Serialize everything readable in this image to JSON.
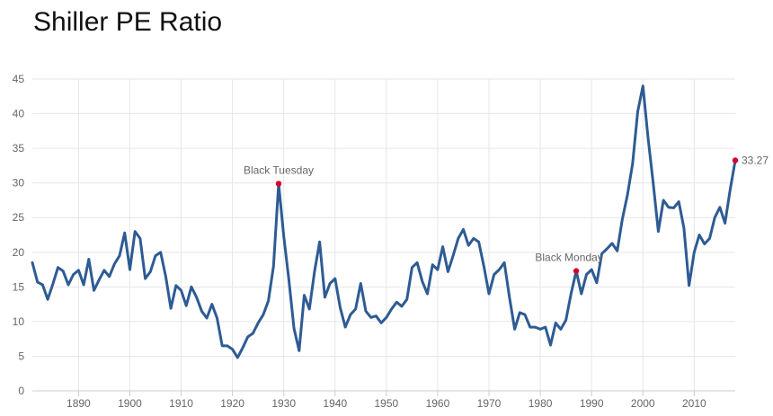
{
  "page": {
    "title": "Shiller PE Ratio"
  },
  "chart_data": {
    "type": "line",
    "title": "Shiller PE Ratio",
    "xlabel": "",
    "ylabel": "",
    "xlim": [
      1881,
      2018
    ],
    "ylim": [
      0,
      45
    ],
    "y_ticks": [
      0,
      5,
      10,
      15,
      20,
      25,
      30,
      35,
      40,
      45
    ],
    "x_ticks": [
      1890,
      1900,
      1910,
      1920,
      1930,
      1940,
      1950,
      1960,
      1970,
      1980,
      1990,
      2000,
      2010
    ],
    "grid": true,
    "legend": "none",
    "colors": {
      "line": "#2e5b94",
      "marker": "#d6002a",
      "grid": "#e6e6e6",
      "text": "#666666"
    },
    "series": [
      {
        "values": [
          [
            1881,
            18.5
          ],
          [
            1882,
            15.7
          ],
          [
            1883,
            15.3
          ],
          [
            1884,
            13.2
          ],
          [
            1885,
            15.4
          ],
          [
            1886,
            17.8
          ],
          [
            1887,
            17.3
          ],
          [
            1888,
            15.3
          ],
          [
            1889,
            16.8
          ],
          [
            1890,
            17.4
          ],
          [
            1891,
            15.3
          ],
          [
            1892,
            19.0
          ],
          [
            1893,
            14.5
          ],
          [
            1894,
            16.0
          ],
          [
            1895,
            17.4
          ],
          [
            1896,
            16.5
          ],
          [
            1897,
            18.3
          ],
          [
            1898,
            19.5
          ],
          [
            1899,
            22.8
          ],
          [
            1900,
            17.5
          ],
          [
            1901,
            23.0
          ],
          [
            1902,
            22.0
          ],
          [
            1903,
            16.2
          ],
          [
            1904,
            17.2
          ],
          [
            1905,
            19.5
          ],
          [
            1906,
            20.0
          ],
          [
            1907,
            16.5
          ],
          [
            1908,
            11.9
          ],
          [
            1909,
            15.2
          ],
          [
            1910,
            14.5
          ],
          [
            1911,
            12.3
          ],
          [
            1912,
            15.0
          ],
          [
            1913,
            13.5
          ],
          [
            1914,
            11.5
          ],
          [
            1915,
            10.5
          ],
          [
            1916,
            12.5
          ],
          [
            1917,
            10.5
          ],
          [
            1918,
            6.5
          ],
          [
            1919,
            6.5
          ],
          [
            1920,
            6.0
          ],
          [
            1921,
            4.8
          ],
          [
            1922,
            6.2
          ],
          [
            1923,
            7.8
          ],
          [
            1924,
            8.3
          ],
          [
            1925,
            9.8
          ],
          [
            1926,
            11.0
          ],
          [
            1927,
            13.0
          ],
          [
            1928,
            18.0
          ],
          [
            1929,
            29.9
          ],
          [
            1930,
            22.3
          ],
          [
            1931,
            16.0
          ],
          [
            1932,
            9.0
          ],
          [
            1933,
            5.8
          ],
          [
            1934,
            13.8
          ],
          [
            1935,
            11.8
          ],
          [
            1936,
            17.2
          ],
          [
            1937,
            21.5
          ],
          [
            1938,
            13.5
          ],
          [
            1939,
            15.5
          ],
          [
            1940,
            16.2
          ],
          [
            1941,
            12.0
          ],
          [
            1942,
            9.2
          ],
          [
            1943,
            11.0
          ],
          [
            1944,
            11.8
          ],
          [
            1945,
            15.5
          ],
          [
            1946,
            11.5
          ],
          [
            1947,
            10.6
          ],
          [
            1948,
            10.8
          ],
          [
            1949,
            9.8
          ],
          [
            1950,
            10.6
          ],
          [
            1951,
            11.8
          ],
          [
            1952,
            12.8
          ],
          [
            1953,
            12.2
          ],
          [
            1954,
            13.2
          ],
          [
            1955,
            17.8
          ],
          [
            1956,
            18.5
          ],
          [
            1957,
            15.8
          ],
          [
            1958,
            14.0
          ],
          [
            1959,
            18.2
          ],
          [
            1960,
            17.5
          ],
          [
            1961,
            20.8
          ],
          [
            1962,
            17.2
          ],
          [
            1963,
            19.5
          ],
          [
            1964,
            22.0
          ],
          [
            1965,
            23.3
          ],
          [
            1966,
            21.0
          ],
          [
            1967,
            22.0
          ],
          [
            1968,
            21.5
          ],
          [
            1969,
            18.0
          ],
          [
            1970,
            14.0
          ],
          [
            1971,
            16.8
          ],
          [
            1972,
            17.5
          ],
          [
            1973,
            18.5
          ],
          [
            1974,
            13.5
          ],
          [
            1975,
            8.9
          ],
          [
            1976,
            11.3
          ],
          [
            1977,
            11.0
          ],
          [
            1978,
            9.2
          ],
          [
            1979,
            9.2
          ],
          [
            1980,
            8.9
          ],
          [
            1981,
            9.2
          ],
          [
            1982,
            6.6
          ],
          [
            1983,
            9.8
          ],
          [
            1984,
            8.9
          ],
          [
            1985,
            10.2
          ],
          [
            1986,
            14.0
          ],
          [
            1987,
            17.3
          ],
          [
            1988,
            14.0
          ],
          [
            1989,
            16.8
          ],
          [
            1990,
            17.5
          ],
          [
            1991,
            15.6
          ],
          [
            1992,
            19.8
          ],
          [
            1993,
            20.5
          ],
          [
            1994,
            21.3
          ],
          [
            1995,
            20.2
          ],
          [
            1996,
            24.8
          ],
          [
            1997,
            28.3
          ],
          [
            1998,
            32.8
          ],
          [
            1999,
            40.3
          ],
          [
            2000,
            44.0
          ],
          [
            2001,
            36.5
          ],
          [
            2002,
            30.0
          ],
          [
            2003,
            23.0
          ],
          [
            2004,
            27.5
          ],
          [
            2005,
            26.5
          ],
          [
            2006,
            26.4
          ],
          [
            2007,
            27.3
          ],
          [
            2008,
            23.5
          ],
          [
            2009,
            15.2
          ],
          [
            2010,
            20.0
          ],
          [
            2011,
            22.5
          ],
          [
            2012,
            21.2
          ],
          [
            2013,
            22.0
          ],
          [
            2014,
            25.0
          ],
          [
            2015,
            26.5
          ],
          [
            2016,
            24.2
          ],
          [
            2017,
            29.0
          ],
          [
            2018,
            33.27
          ]
        ]
      }
    ],
    "highlight_points": [
      {
        "x": 1929,
        "y": 29.9
      },
      {
        "x": 1987,
        "y": 17.3
      },
      {
        "x": 2018,
        "y": 33.27
      }
    ],
    "annotations": [
      {
        "text": "Black Tuesday",
        "x": 1929,
        "y": 29.9
      },
      {
        "text": "Black Monday",
        "x": 1987,
        "y": 17.3
      },
      {
        "text": "33.27",
        "x": 2018,
        "y": 33.27
      }
    ]
  }
}
